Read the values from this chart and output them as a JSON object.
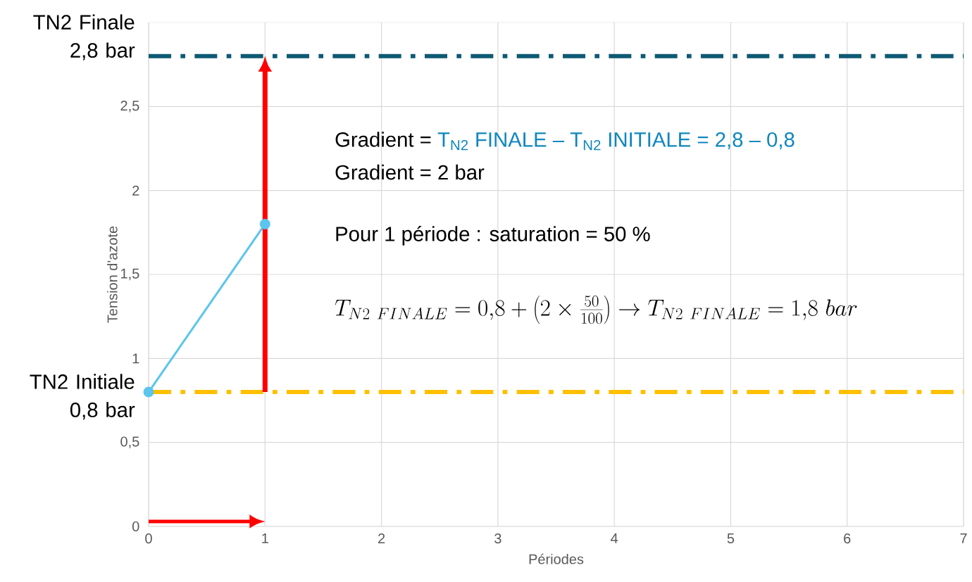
{
  "chart_data": {
    "type": "line",
    "xlabel": "Périodes",
    "ylabel": "Tension d'azote",
    "xlim": [
      0,
      7
    ],
    "ylim": [
      0,
      3
    ],
    "xticks": [
      0,
      1,
      2,
      3,
      4,
      5,
      6,
      7
    ],
    "yticks": [
      0,
      {
        "value": 0.5,
        "label": "0,5"
      },
      1,
      {
        "value": 1.5,
        "label": "1,5"
      },
      2,
      {
        "value": 2.5,
        "label": "2,5"
      }
    ],
    "grid": true,
    "series": [
      {
        "color": "#5bc5ee",
        "x": [
          0,
          1
        ],
        "values": [
          0.8,
          1.8
        ],
        "marker": "circle"
      }
    ],
    "ref_lines": [
      {
        "axis": "y",
        "value": 2.8,
        "label": "TN2 Finale 2,8 bar",
        "color": "#0e5a73",
        "line_style": "dashdot"
      },
      {
        "axis": "y",
        "value": 0.8,
        "label": "TN2 Initiale 0,8 bar",
        "color": "#ffc000",
        "line_style": "dashdot"
      }
    ],
    "annotations": [
      "Gradient = ",
      "T$_{N2}$ FINALE – T$_{N2}$ INITIALE = 2,8 – 0,8",
      "Gradient = 2 bar",
      "Pour 1 période : saturation = 50 %",
      "T_{N2\\ FINALE}=0{,}8+\\left(2\\times\\frac{50}{100}\\right)\\rightarrow T_{N2\\ FINALE}=1{,}8\\ bar"
    ]
  }
}
